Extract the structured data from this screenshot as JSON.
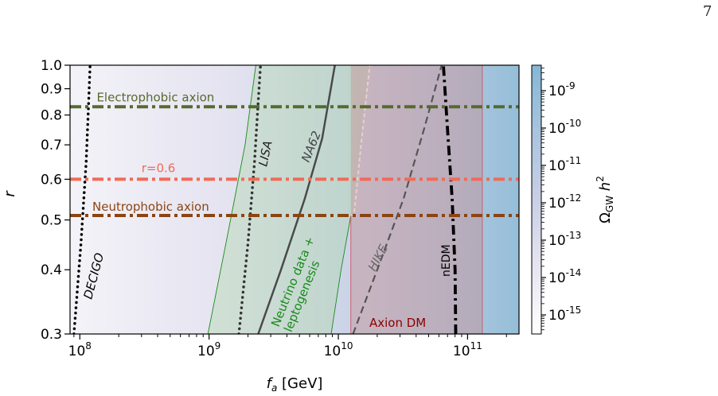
{
  "page_number": "7",
  "chart_data": {
    "type": "line",
    "xlabel_base": "f",
    "xlabel_sub": "a",
    "xlabel_unit": " [GeV]",
    "ylabel": "r",
    "xscale": "log",
    "yscale": "log",
    "xlim": [
      84000000.0,
      250000000000.0
    ],
    "ylim": [
      0.3,
      1.0
    ],
    "x_ticks": [
      {
        "value": 100000000.0,
        "base": "10",
        "exp": "8"
      },
      {
        "value": 1000000000.0,
        "base": "10",
        "exp": "9"
      },
      {
        "value": 10000000000.0,
        "base": "10",
        "exp": "10"
      },
      {
        "value": 100000000000.0,
        "base": "10",
        "exp": "11"
      }
    ],
    "y_ticks": [
      {
        "value": 0.3,
        "label": "0.3"
      },
      {
        "value": 0.4,
        "label": "0.4"
      },
      {
        "value": 0.5,
        "label": "0.5"
      },
      {
        "value": 0.6,
        "label": "0.6"
      },
      {
        "value": 0.7,
        "label": "0.7"
      },
      {
        "value": 0.8,
        "label": "0.8"
      },
      {
        "value": 0.9,
        "label": "0.9"
      },
      {
        "value": 1.0,
        "label": "1.0"
      }
    ],
    "colorbar": {
      "label_base": "Ω",
      "label_sub": "GW",
      "label_rest": " h",
      "label_sup": "2",
      "ticks": [
        {
          "exp": "-9"
        },
        {
          "exp": "-10"
        },
        {
          "exp": "-11"
        },
        {
          "exp": "-12"
        },
        {
          "exp": "-13"
        },
        {
          "exp": "-14"
        },
        {
          "exp": "-15"
        }
      ],
      "colors": [
        "#ffffff",
        "#ece9f3",
        "#c9cfe6",
        "#a9c4de",
        "#85b7d6"
      ]
    },
    "horizontal_lines": [
      {
        "label": "Electrophobic axion",
        "r": 0.83,
        "color": "#556b2f"
      },
      {
        "label": "r=0.6",
        "r": 0.6,
        "color": "#f26a55"
      },
      {
        "label": "Neutrophobic axion",
        "r": 0.51,
        "color": "#8b4513"
      }
    ],
    "curves": [
      {
        "label": "DECIGO",
        "style": "dotted",
        "color": "#000000",
        "points": [
          [
            90000000.0,
            0.3
          ],
          [
            102000000.0,
            0.45
          ],
          [
            112000000.0,
            0.65
          ],
          [
            117000000.0,
            0.85
          ],
          [
            120000000.0,
            1.0
          ]
        ]
      },
      {
        "label": "LISA",
        "style": "dotted",
        "color": "#333333",
        "points": [
          [
            1700000000.0,
            0.3
          ],
          [
            2000000000.0,
            0.45
          ],
          [
            2250000000.0,
            0.65
          ],
          [
            2400000000.0,
            0.85
          ],
          [
            2500000000.0,
            1.0
          ]
        ]
      },
      {
        "label": "NA62",
        "style": "solid",
        "color": "#4a4a4a",
        "points": [
          [
            2400000000.0,
            0.3
          ],
          [
            3600000000.0,
            0.4
          ],
          [
            5500000000.0,
            0.55
          ],
          [
            7500000000.0,
            0.72
          ],
          [
            9400000000.0,
            1.0
          ]
        ]
      },
      {
        "label": "HIKE",
        "style": "dashed",
        "color": "#555555",
        "points": [
          [
            13000000000.0,
            0.3
          ],
          [
            20000000000.0,
            0.4
          ],
          [
            32000000000.0,
            0.55
          ],
          [
            46000000000.0,
            0.75
          ],
          [
            63000000000.0,
            1.0
          ]
        ]
      },
      {
        "label": "nEDM",
        "style": "dashdot",
        "color": "#000000",
        "points": [
          [
            81000000000.0,
            0.3
          ],
          [
            80000000000.0,
            0.4
          ],
          [
            76000000000.0,
            0.55
          ],
          [
            70000000000.0,
            0.75
          ],
          [
            65000000000.0,
            1.0
          ]
        ]
      }
    ],
    "regions": [
      {
        "label": "Neutrino data + leptogenesis",
        "color": "#1a8a1a",
        "left_edge": [
          [
            980000000.0,
            0.3
          ],
          [
            1350000000.0,
            0.45
          ],
          [
            1900000000.0,
            0.7
          ],
          [
            2300000000.0,
            1.0
          ]
        ],
        "right_edge": [
          [
            8800000000.0,
            0.3
          ],
          [
            10500000000.0,
            0.4
          ],
          [
            12500000000.0,
            0.51
          ],
          [
            13200000000.0,
            0.51
          ],
          [
            15000000000.0,
            0.7
          ],
          [
            17500000000.0,
            1.0
          ]
        ]
      },
      {
        "label": "Axion DM",
        "color": "#9b1c31",
        "x_min": 12500000000.0,
        "x_max": 130000000000.0
      }
    ]
  }
}
